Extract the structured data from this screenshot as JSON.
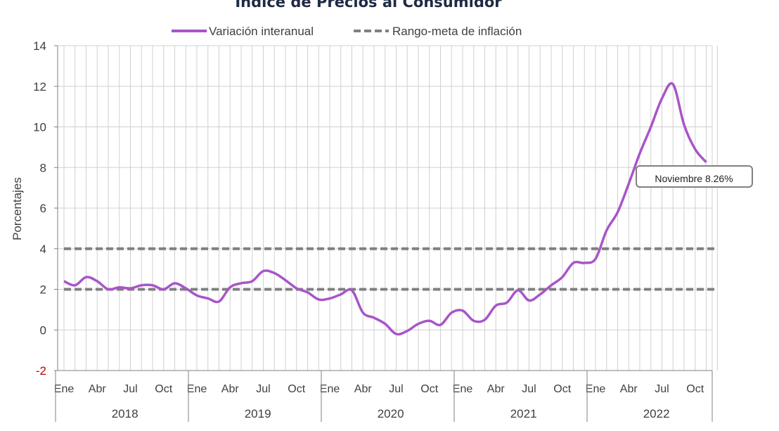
{
  "chart_data": {
    "type": "line",
    "title": "Índice de Precios al Consumidor",
    "ylabel": "Porcentajes",
    "xlabel": "",
    "ylim": [
      -2,
      14
    ],
    "yticks": [
      -2,
      0,
      2,
      4,
      6,
      8,
      10,
      12,
      14
    ],
    "grid": true,
    "legend_position": "top-center",
    "years": [
      "2018",
      "2019",
      "2020",
      "2021",
      "2022"
    ],
    "month_tick_labels": [
      "Ene",
      "Abr",
      "Jul",
      "Oct"
    ],
    "x": [
      "2018-01",
      "2018-02",
      "2018-03",
      "2018-04",
      "2018-05",
      "2018-06",
      "2018-07",
      "2018-08",
      "2018-09",
      "2018-10",
      "2018-11",
      "2018-12",
      "2019-01",
      "2019-02",
      "2019-03",
      "2019-04",
      "2019-05",
      "2019-06",
      "2019-07",
      "2019-08",
      "2019-09",
      "2019-10",
      "2019-11",
      "2019-12",
      "2020-01",
      "2020-02",
      "2020-03",
      "2020-04",
      "2020-05",
      "2020-06",
      "2020-07",
      "2020-08",
      "2020-09",
      "2020-10",
      "2020-11",
      "2020-12",
      "2021-01",
      "2021-02",
      "2021-03",
      "2021-04",
      "2021-05",
      "2021-06",
      "2021-07",
      "2021-08",
      "2021-09",
      "2021-10",
      "2021-11",
      "2021-12",
      "2022-01",
      "2022-02",
      "2022-03",
      "2022-04",
      "2022-05",
      "2022-06",
      "2022-07",
      "2022-08",
      "2022-09",
      "2022-10",
      "2022-11"
    ],
    "series": [
      {
        "name": "Variación interanual",
        "color": "#a855c8",
        "style": "solid",
        "values": [
          2.4,
          2.2,
          2.6,
          2.4,
          2.0,
          2.1,
          2.05,
          2.2,
          2.2,
          2.0,
          2.3,
          2.05,
          1.7,
          1.55,
          1.4,
          2.1,
          2.3,
          2.4,
          2.9,
          2.8,
          2.45,
          2.05,
          1.85,
          1.5,
          1.55,
          1.75,
          1.95,
          0.85,
          0.6,
          0.3,
          -0.2,
          -0.05,
          0.3,
          0.45,
          0.25,
          0.85,
          0.95,
          0.45,
          0.5,
          1.2,
          1.35,
          1.95,
          1.45,
          1.75,
          2.2,
          2.6,
          3.3,
          3.3,
          3.5,
          4.9,
          5.8,
          7.2,
          8.7,
          10.0,
          11.4,
          12.1,
          10.1,
          8.9,
          8.26
        ]
      },
      {
        "name": "Rango-meta de inflación",
        "color": "#808080",
        "style": "dashed",
        "lines": [
          2,
          4
        ]
      }
    ],
    "annotations": [
      {
        "text": "Noviembre 8.26%",
        "x": "2022-11",
        "y": 8.26
      }
    ]
  }
}
